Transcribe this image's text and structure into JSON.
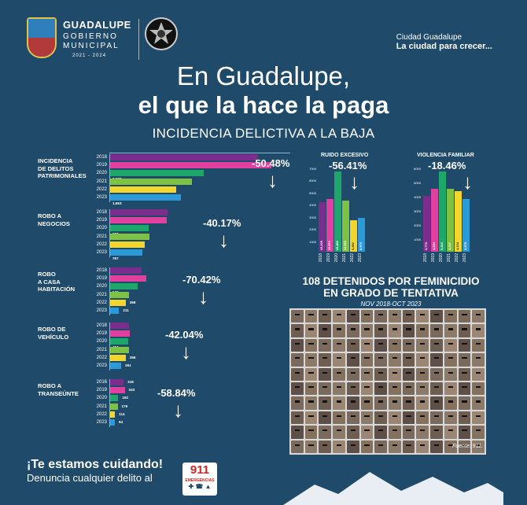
{
  "header": {
    "brand_name": "GUADALUPE",
    "brand_line1": "GOBIERNO",
    "brand_line2": "MUNICIPAL",
    "brand_years": "2021 - 2024",
    "slogan_top": "Ciudad Guadalupe",
    "slogan_main": "La ciudad para crecer..."
  },
  "title": {
    "line1": "En Guadalupe,",
    "line2": "el que la hace la paga",
    "subtitle": "INCIDENCIA DELICTIVA A LA BAJA"
  },
  "colors": {
    "background": "#1f4a6a",
    "y2018": "#7b2d8e",
    "y2019": "#e040a0",
    "y2020": "#1fa66a",
    "y2021": "#7ec241",
    "y2022": "#f2d62c",
    "y2023": "#2a9ad8"
  },
  "chart_data": [
    {
      "type": "bar",
      "orientation": "horizontal",
      "title": "INCIDENCIA DE DELITOS PATRIMONIALES",
      "categories": [
        "2018",
        "2019",
        "2020",
        "2021",
        "2022",
        "2023"
      ],
      "values": [
        3470,
        3793,
        2208,
        1931,
        1545,
        1663
      ],
      "value_labels": [
        "3,470",
        "3,793",
        "2,208",
        "1,931",
        "1,545",
        "1,663"
      ],
      "change_label": "-50.48%"
    },
    {
      "type": "bar",
      "orientation": "horizontal",
      "title": "ROBO A NEGOCIOS",
      "categories": [
        "2018",
        "2019",
        "2020",
        "2021",
        "2022",
        "2023"
      ],
      "values": [
        1348,
        1337,
        900,
        918,
        819,
        767
      ],
      "value_labels": [
        "1,348",
        "1,337",
        "900",
        "918",
        "819",
        "767"
      ],
      "change_label": "-40.17%"
    },
    {
      "type": "bar",
      "orientation": "horizontal",
      "title": "ROBO A CASA HABITACIÓN",
      "categories": [
        "2018",
        "2019",
        "2020",
        "2021",
        "2022",
        "2023"
      ],
      "values": [
        736,
        846,
        646,
        446,
        366,
        211
      ],
      "value_labels": [
        "736",
        "846",
        "646",
        "446",
        "366",
        "211"
      ],
      "change_label": "-70.42%"
    },
    {
      "type": "bar",
      "orientation": "horizontal",
      "title": "ROBO DE VEHÍCULO",
      "categories": [
        "2018",
        "2019",
        "2020",
        "2021",
        "2022",
        "2023"
      ],
      "values": [
        448,
        471,
        434,
        441,
        366,
        261
      ],
      "value_labels": [
        "448",
        "471",
        "434",
        "441",
        "366",
        "261"
      ],
      "change_label": "-42.04%"
    },
    {
      "type": "bar",
      "orientation": "horizontal",
      "title": "ROBO A TRANSEÚNTE",
      "categories": [
        "2016",
        "2019",
        "2020",
        "2021",
        "2022",
        "2023"
      ],
      "values": [
        318,
        343,
        192,
        176,
        114,
        94
      ],
      "value_labels": [
        "318",
        "343",
        "192",
        "176",
        "114",
        "94"
      ],
      "change_label": "-58.84%"
    },
    {
      "type": "bar",
      "orientation": "vertical",
      "title": "RUIDO EXCESIVO",
      "categories": [
        "2018",
        "2019",
        "2020",
        "2021",
        "2022",
        "2023"
      ],
      "values": [
        10209,
        10870,
        16460,
        10500,
        6492,
        6970
      ],
      "value_labels": [
        "10,209",
        "10,870",
        "16,460",
        "10,500",
        "6,492",
        "6,970"
      ],
      "yticks": [
        "7000",
        "6000",
        "5000",
        "4000",
        "3000",
        "2000",
        "1000"
      ],
      "ylim": [
        0,
        7000
      ],
      "change_label": "-56.41%"
    },
    {
      "type": "bar",
      "orientation": "vertical",
      "title": "VIOLENCIA FAMILIAR",
      "categories": [
        "2018",
        "2019",
        "2020",
        "2021",
        "2022",
        "2023"
      ],
      "values": [
        3773,
        4234,
        5410,
        4237,
        4104,
        3575
      ],
      "value_labels": [
        "3,773",
        "4,234",
        "5,410",
        "4,237",
        "4,104",
        "3,575"
      ],
      "yticks": [
        "6000",
        "5000",
        "4000",
        "3000",
        "2000",
        "1000"
      ],
      "ylim": [
        0,
        6000
      ],
      "change_label": "-18.46%"
    }
  ],
  "feminicidio": {
    "title_line1": "108 DETENIDOS POR FEMINICIDIO",
    "title_line2": "EN GRADO DE TENTATIVA",
    "period": "NOV 2018-OCT 2023",
    "source": "Fuente: 911."
  },
  "footer": {
    "headline": "¡Te estamos cuidando!",
    "line": "Denuncia cualquier delito al",
    "badge_number": "911",
    "badge_text": "EMERGENCIAS"
  }
}
